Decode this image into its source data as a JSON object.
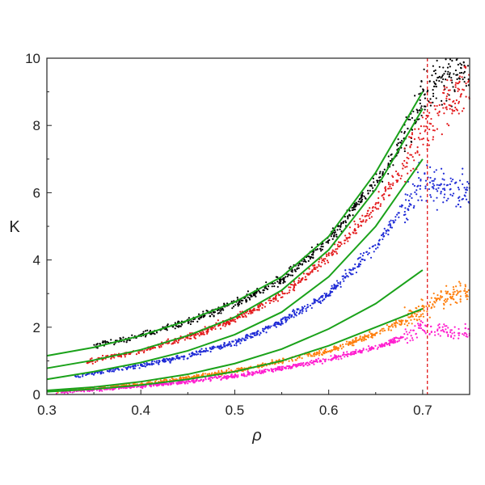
{
  "chart_data": {
    "type": "scatter",
    "xlabel": "ρ",
    "ylabel": "K",
    "xlim": [
      0.3,
      0.75
    ],
    "ylim": [
      0,
      10
    ],
    "x_ticks": [
      "0.3",
      "0.4",
      "0.5",
      "0.6",
      "0.7"
    ],
    "y_ticks": [
      "0",
      "2",
      "4",
      "6",
      "8",
      "10"
    ],
    "grid": false,
    "legend": "none",
    "reference_line": {
      "x": 0.705,
      "style": "dashed",
      "color": "#e31a1c"
    },
    "fit_color": "#1aa21a",
    "series": [
      {
        "color": "#000000",
        "x": [
          0.35,
          0.4,
          0.45,
          0.5,
          0.55,
          0.6,
          0.65,
          0.68,
          0.7,
          0.72,
          0.75
        ],
        "y": [
          1.45,
          1.75,
          2.15,
          2.7,
          3.4,
          4.6,
          6.3,
          7.6,
          9.0,
          9.6,
          9.8
        ]
      },
      {
        "color": "#e31a1c",
        "x": [
          0.34,
          0.4,
          0.45,
          0.5,
          0.55,
          0.6,
          0.65,
          0.68,
          0.7,
          0.72,
          0.75
        ],
        "y": [
          0.95,
          1.3,
          1.7,
          2.25,
          2.95,
          4.1,
          5.6,
          6.8,
          7.8,
          8.5,
          9.2
        ]
      },
      {
        "color": "#1f2bd6",
        "x": [
          0.33,
          0.4,
          0.45,
          0.5,
          0.55,
          0.6,
          0.65,
          0.68,
          0.7,
          0.72,
          0.75
        ],
        "y": [
          0.55,
          0.85,
          1.15,
          1.55,
          2.15,
          3.0,
          4.4,
          5.6,
          6.3,
          6.2,
          6.0
        ]
      },
      {
        "color": "#ff7f0e",
        "x": [
          0.31,
          0.4,
          0.45,
          0.5,
          0.55,
          0.6,
          0.65,
          0.68,
          0.7,
          0.72,
          0.75
        ],
        "y": [
          0.1,
          0.3,
          0.5,
          0.7,
          1.0,
          1.3,
          1.8,
          2.2,
          2.5,
          2.9,
          3.1
        ]
      },
      {
        "color": "#ff1ecf",
        "x": [
          0.31,
          0.4,
          0.45,
          0.5,
          0.55,
          0.6,
          0.65,
          0.68,
          0.7,
          0.72,
          0.75
        ],
        "y": [
          0.05,
          0.25,
          0.38,
          0.55,
          0.78,
          1.05,
          1.4,
          1.7,
          2.0,
          1.9,
          1.8
        ]
      }
    ],
    "fits": [
      {
        "x": [
          0.3,
          0.35,
          0.4,
          0.45,
          0.5,
          0.55,
          0.6,
          0.65,
          0.7
        ],
        "y": [
          1.15,
          1.4,
          1.75,
          2.2,
          2.75,
          3.5,
          4.7,
          6.6,
          9.0
        ]
      },
      {
        "x": [
          0.3,
          0.35,
          0.4,
          0.45,
          0.5,
          0.55,
          0.6,
          0.65,
          0.7
        ],
        "y": [
          0.78,
          1.02,
          1.33,
          1.75,
          2.3,
          3.1,
          4.3,
          6.1,
          8.5
        ]
      },
      {
        "x": [
          0.3,
          0.35,
          0.4,
          0.45,
          0.5,
          0.55,
          0.6,
          0.65,
          0.7
        ],
        "y": [
          0.45,
          0.68,
          0.95,
          1.3,
          1.78,
          2.45,
          3.5,
          5.0,
          7.0
        ]
      },
      {
        "x": [
          0.3,
          0.35,
          0.4,
          0.45,
          0.5,
          0.55,
          0.6,
          0.65,
          0.7
        ],
        "y": [
          0.12,
          0.22,
          0.38,
          0.6,
          0.92,
          1.35,
          1.95,
          2.7,
          3.7
        ]
      },
      {
        "x": [
          0.3,
          0.35,
          0.4,
          0.45,
          0.5,
          0.55,
          0.6,
          0.65,
          0.7
        ],
        "y": [
          0.08,
          0.16,
          0.28,
          0.45,
          0.68,
          1.0,
          1.45,
          2.0,
          2.55
        ]
      }
    ]
  }
}
